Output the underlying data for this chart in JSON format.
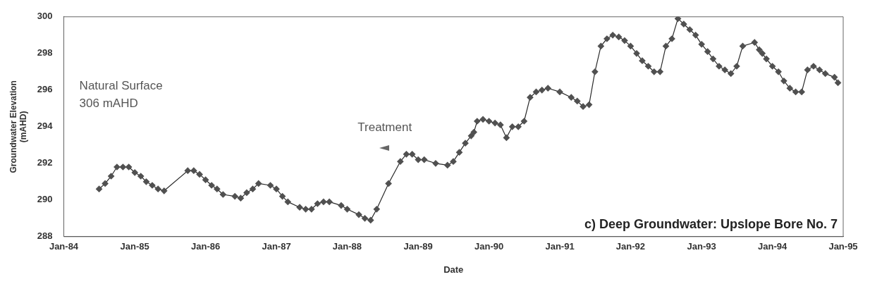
{
  "chart_data": {
    "type": "line",
    "title": "c) Deep Groundwater: Upslope Bore No. 7",
    "xlabel": "Date",
    "ylabel": "Groundwater Elevation\n(mAHD)",
    "annotations": [
      "Natural Surface",
      "306 mAHD",
      "Treatment"
    ],
    "series": [
      {
        "color": "#505050",
        "marker": "diamond",
        "line_style": "solid",
        "x": [
          "1984-07",
          "1984-08",
          "1984-09",
          "1984-10",
          "1984-11",
          "1984-12",
          "1985-01",
          "1985-02",
          "1985-03",
          "1985-04",
          "1985-05",
          "1985-06",
          "1985-10",
          "1985-11",
          "1985-12",
          "1986-01",
          "1986-02",
          "1986-03",
          "1986-04",
          "1986-06",
          "1986-07",
          "1986-08",
          "1986-09",
          "1986-10",
          "1986-12",
          "1987-01",
          "1987-02",
          "1987-03",
          "1987-05",
          "1987-06",
          "1987-07",
          "1987-08",
          "1987-09",
          "1987-10",
          "1987-12",
          "1988-01",
          "1988-03",
          "1988-04",
          "1988-05",
          "1988-06",
          "1988-08",
          "1988-10",
          "1988-11",
          "1988-12",
          "1989-01",
          "1989-02",
          "1989-04",
          "1989-06",
          "1989-07",
          "1989-08",
          "1989-09",
          "1989-10-01",
          "1989-10-15",
          "1989-11",
          "1989-12",
          "1990-01",
          "1990-02",
          "1990-03",
          "1990-04",
          "1990-05",
          "1990-06",
          "1990-07",
          "1990-08",
          "1990-09",
          "1990-10",
          "1990-11",
          "1991-01",
          "1991-03",
          "1991-04",
          "1991-05",
          "1991-06",
          "1991-07",
          "1991-08",
          "1991-09",
          "1991-10",
          "1991-11",
          "1991-12",
          "1992-01",
          "1992-02",
          "1992-03",
          "1992-04",
          "1992-05",
          "1992-06",
          "1992-07",
          "1992-08",
          "1992-09",
          "1992-10",
          "1992-11",
          "1992-12",
          "1993-01",
          "1993-02",
          "1993-03",
          "1993-04",
          "1993-05",
          "1993-06",
          "1993-07",
          "1993-08",
          "1993-10",
          "1993-10-25",
          "1993-11-10",
          "1993-12",
          "1994-01",
          "1994-02",
          "1994-03",
          "1994-04",
          "1994-05",
          "1994-06",
          "1994-07",
          "1994-08",
          "1994-09",
          "1994-10",
          "1994-11-17",
          "1994-12-05"
        ],
        "values": [
          290.6,
          290.9,
          291.3,
          291.8,
          291.8,
          291.8,
          291.5,
          291.3,
          291.0,
          290.8,
          290.6,
          290.5,
          291.6,
          291.6,
          291.4,
          291.1,
          290.8,
          290.6,
          290.3,
          290.2,
          290.1,
          290.4,
          290.6,
          290.9,
          290.8,
          290.6,
          290.2,
          289.9,
          289.6,
          289.5,
          289.5,
          289.8,
          289.9,
          289.9,
          289.7,
          289.5,
          289.2,
          289.0,
          288.9,
          289.5,
          290.9,
          292.1,
          292.5,
          292.5,
          292.2,
          292.2,
          292.0,
          291.9,
          292.1,
          292.6,
          293.1,
          293.5,
          293.7,
          294.3,
          294.4,
          294.3,
          294.2,
          294.1,
          293.4,
          294.0,
          294.0,
          294.3,
          295.6,
          295.9,
          296.0,
          296.1,
          295.9,
          295.6,
          295.4,
          295.1,
          295.2,
          297.0,
          298.4,
          298.8,
          299.0,
          298.9,
          298.7,
          298.4,
          298.0,
          297.6,
          297.3,
          297.0,
          297.0,
          298.4,
          298.8,
          299.9,
          299.6,
          299.3,
          299.0,
          298.5,
          298.1,
          297.7,
          297.3,
          297.1,
          296.9,
          297.3,
          298.4,
          298.6,
          298.2,
          298.0,
          297.7,
          297.3,
          297.0,
          296.5,
          296.1,
          295.9,
          295.9,
          297.1,
          297.3,
          297.1,
          296.9,
          296.7,
          296.4
        ]
      }
    ],
    "xlim": [
      "1984-01",
      "1995-01"
    ],
    "xticks": [
      {
        "value": "1984-01",
        "label": "Jan-84"
      },
      {
        "value": "1985-01",
        "label": "Jan-85"
      },
      {
        "value": "1986-01",
        "label": "Jan-86"
      },
      {
        "value": "1987-01",
        "label": "Jan-87"
      },
      {
        "value": "1988-01",
        "label": "Jan-88"
      },
      {
        "value": "1989-01",
        "label": "Jan-89"
      },
      {
        "value": "1990-01",
        "label": "Jan-90"
      },
      {
        "value": "1991-01",
        "label": "Jan-91"
      },
      {
        "value": "1992-01",
        "label": "Jan-92"
      },
      {
        "value": "1993-01",
        "label": "Jan-93"
      },
      {
        "value": "1994-01",
        "label": "Jan-94"
      },
      {
        "value": "1995-01",
        "label": "Jan-95"
      }
    ],
    "ylim": [
      288,
      300
    ],
    "yticks": [
      288,
      290,
      292,
      294,
      296,
      298,
      300
    ],
    "grid": false,
    "legend": false
  }
}
